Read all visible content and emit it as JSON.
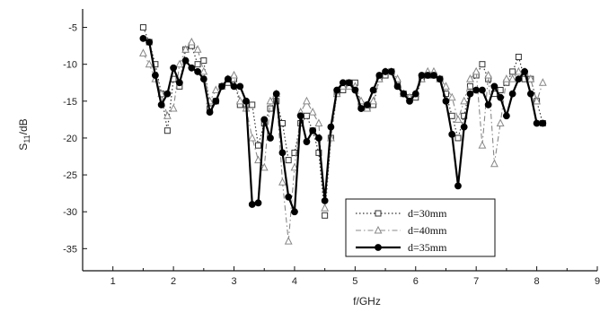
{
  "chart_data": {
    "type": "line",
    "title": "",
    "xlabel": "f/GHz",
    "ylabel_main": "S",
    "ylabel_sub": "11",
    "ylabel_rest": "/dB",
    "xlim": [
      0.5,
      9.0
    ],
    "ylim": [
      -38,
      -2.5
    ],
    "xticks": [
      1,
      2,
      3,
      4,
      5,
      6,
      7,
      8,
      9
    ],
    "yticks": [
      -5,
      -10,
      -15,
      -20,
      -25,
      -30,
      -35
    ],
    "grid": false,
    "legend_position": "bottom-center",
    "series": [
      {
        "name": "d=30mm",
        "marker": "square-open",
        "line": "dotted",
        "color": "#333333",
        "x": [
          1.5,
          1.6,
          1.7,
          1.8,
          1.9,
          2.0,
          2.1,
          2.2,
          2.3,
          2.4,
          2.5,
          2.6,
          2.7,
          2.8,
          2.9,
          3.0,
          3.1,
          3.2,
          3.3,
          3.4,
          3.5,
          3.6,
          3.7,
          3.8,
          3.9,
          4.0,
          4.1,
          4.2,
          4.3,
          4.4,
          4.5,
          4.6,
          4.7,
          4.8,
          4.9,
          5.0,
          5.1,
          5.2,
          5.3,
          5.4,
          5.5,
          5.6,
          5.7,
          5.8,
          5.9,
          6.0,
          6.1,
          6.2,
          6.3,
          6.4,
          6.5,
          6.6,
          6.7,
          6.8,
          6.9,
          7.0,
          7.1,
          7.2,
          7.3,
          7.4,
          7.5,
          7.6,
          7.7,
          7.8,
          7.9,
          8.0,
          8.1
        ],
        "y": [
          -5.0,
          -7.0,
          -10.0,
          -14.0,
          -19.0,
          -12.0,
          -13.0,
          -8.0,
          -7.5,
          -10.0,
          -9.5,
          -16.0,
          -15.0,
          -13.0,
          -12.5,
          -12.0,
          -15.5,
          -15.5,
          -15.5,
          -21.0,
          -18.0,
          -16.0,
          -15.0,
          -18.0,
          -23.0,
          -22.0,
          -18.0,
          -17.0,
          -19.0,
          -22.0,
          -30.5,
          -20.0,
          -14.0,
          -13.5,
          -12.5,
          -12.5,
          -15.5,
          -16.0,
          -15.5,
          -12.0,
          -11.5,
          -11.0,
          -12.5,
          -14.0,
          -14.5,
          -14.5,
          -12.0,
          -11.5,
          -11.5,
          -12.0,
          -14.0,
          -17.0,
          -20.0,
          -17.0,
          -13.0,
          -11.5,
          -10.0,
          -12.0,
          -14.0,
          -13.5,
          -12.5,
          -11.0,
          -9.0,
          -12.0,
          -12.0,
          -15.0,
          -18.0
        ]
      },
      {
        "name": "d=40mm",
        "marker": "triangle-open",
        "line": "dash-dot",
        "color": "#888888",
        "x": [
          1.5,
          1.6,
          1.7,
          1.8,
          1.9,
          2.0,
          2.1,
          2.2,
          2.3,
          2.4,
          2.5,
          2.6,
          2.7,
          2.8,
          2.9,
          3.0,
          3.1,
          3.2,
          3.3,
          3.4,
          3.5,
          3.6,
          3.7,
          3.8,
          3.9,
          4.0,
          4.1,
          4.2,
          4.3,
          4.4,
          4.5,
          4.6,
          4.7,
          4.8,
          4.9,
          5.0,
          5.1,
          5.2,
          5.3,
          5.4,
          5.5,
          5.6,
          5.7,
          5.8,
          5.9,
          6.0,
          6.1,
          6.2,
          6.3,
          6.4,
          6.5,
          6.6,
          6.7,
          6.8,
          6.9,
          7.0,
          7.1,
          7.2,
          7.3,
          7.4,
          7.5,
          7.6,
          7.7,
          7.8,
          7.9,
          8.0,
          8.1
        ],
        "y": [
          -8.5,
          -10.0,
          -12.0,
          -14.0,
          -17.0,
          -16.0,
          -10.0,
          -8.0,
          -7.0,
          -8.0,
          -11.0,
          -15.0,
          -13.5,
          -13.0,
          -12.0,
          -11.5,
          -15.0,
          -16.0,
          -20.0,
          -23.0,
          -24.0,
          -15.0,
          -14.0,
          -26.0,
          -34.0,
          -24.0,
          -16.5,
          -15.0,
          -16.5,
          -18.0,
          -29.5,
          -20.0,
          -14.0,
          -13.0,
          -13.0,
          -13.0,
          -15.0,
          -16.0,
          -15.0,
          -12.0,
          -11.0,
          -11.0,
          -12.0,
          -14.0,
          -14.5,
          -14.0,
          -12.0,
          -11.0,
          -11.0,
          -12.0,
          -13.0,
          -14.5,
          -17.5,
          -15.0,
          -12.0,
          -11.0,
          -21.0,
          -11.5,
          -23.5,
          -18.0,
          -12.0,
          -12.0,
          -11.0,
          -11.0,
          -12.0,
          -15.0,
          -12.5
        ]
      },
      {
        "name": "d=35mm",
        "marker": "circle-filled",
        "line": "solid",
        "color": "#000000",
        "x": [
          1.5,
          1.6,
          1.7,
          1.8,
          1.9,
          2.0,
          2.1,
          2.2,
          2.3,
          2.4,
          2.5,
          2.6,
          2.7,
          2.8,
          2.9,
          3.0,
          3.1,
          3.2,
          3.3,
          3.4,
          3.5,
          3.6,
          3.7,
          3.8,
          3.9,
          4.0,
          4.1,
          4.2,
          4.3,
          4.4,
          4.5,
          4.6,
          4.7,
          4.8,
          4.9,
          5.0,
          5.1,
          5.2,
          5.3,
          5.4,
          5.5,
          5.6,
          5.7,
          5.8,
          5.9,
          6.0,
          6.1,
          6.2,
          6.3,
          6.4,
          6.5,
          6.6,
          6.7,
          6.8,
          6.9,
          7.0,
          7.1,
          7.2,
          7.3,
          7.4,
          7.5,
          7.6,
          7.7,
          7.8,
          7.9,
          8.0,
          8.1
        ],
        "y": [
          -6.5,
          -7.0,
          -11.5,
          -15.5,
          -14.0,
          -10.5,
          -12.5,
          -9.5,
          -10.5,
          -11.0,
          -12.0,
          -16.5,
          -15.0,
          -13.0,
          -12.0,
          -13.0,
          -13.0,
          -15.0,
          -29.0,
          -28.8,
          -17.5,
          -20.0,
          -14.0,
          -22.0,
          -28.0,
          -30.0,
          -17.0,
          -20.5,
          -19.0,
          -20.0,
          -28.5,
          -18.5,
          -13.5,
          -12.5,
          -12.5,
          -13.5,
          -16.0,
          -15.5,
          -13.5,
          -11.5,
          -11.0,
          -11.0,
          -13.0,
          -14.0,
          -15.0,
          -14.0,
          -11.5,
          -11.5,
          -11.5,
          -12.0,
          -15.0,
          -19.5,
          -26.5,
          -18.5,
          -14.0,
          -13.5,
          -13.5,
          -15.5,
          -13.0,
          -14.5,
          -17.0,
          -14.0,
          -12.0,
          -11.0,
          -14.0,
          -18.0,
          -18.0
        ]
      }
    ]
  }
}
